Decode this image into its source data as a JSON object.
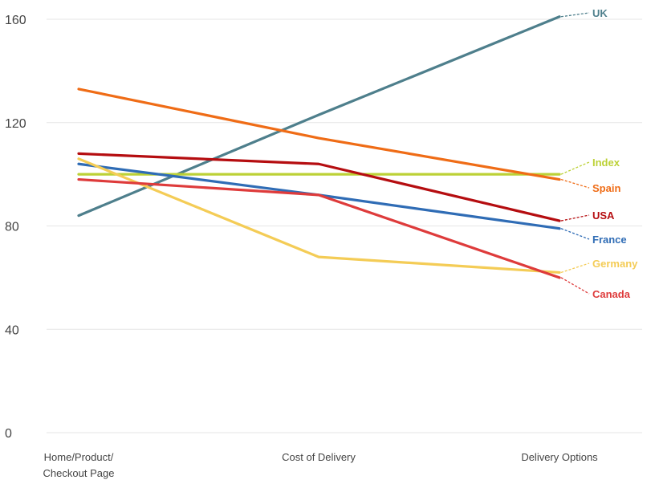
{
  "chart_data": {
    "type": "line",
    "categories": [
      [
        "Home/Product/",
        "Checkout Page"
      ],
      [
        "Cost of Delivery"
      ],
      [
        "Delivery Options"
      ]
    ],
    "yticks": [
      0,
      40,
      80,
      120,
      160
    ],
    "ylim": [
      0,
      160
    ],
    "grid": true,
    "legend": "end-of-line labels",
    "series": [
      {
        "name": "UK",
        "color": "#4e7f8c",
        "values": [
          84,
          123,
          161
        ]
      },
      {
        "name": "Index",
        "color": "#bcd136",
        "values": [
          100,
          100,
          100
        ]
      },
      {
        "name": "Spain",
        "color": "#ef6c16",
        "values": [
          133,
          114,
          98
        ]
      },
      {
        "name": "USA",
        "color": "#b50d10",
        "values": [
          108,
          104,
          82
        ]
      },
      {
        "name": "France",
        "color": "#2f6cb5",
        "values": [
          104,
          92,
          79
        ]
      },
      {
        "name": "Germany",
        "color": "#f4cc56",
        "values": [
          106,
          68,
          62
        ]
      },
      {
        "name": "Canada",
        "color": "#de3b3b",
        "values": [
          98,
          92,
          60
        ]
      }
    ]
  }
}
